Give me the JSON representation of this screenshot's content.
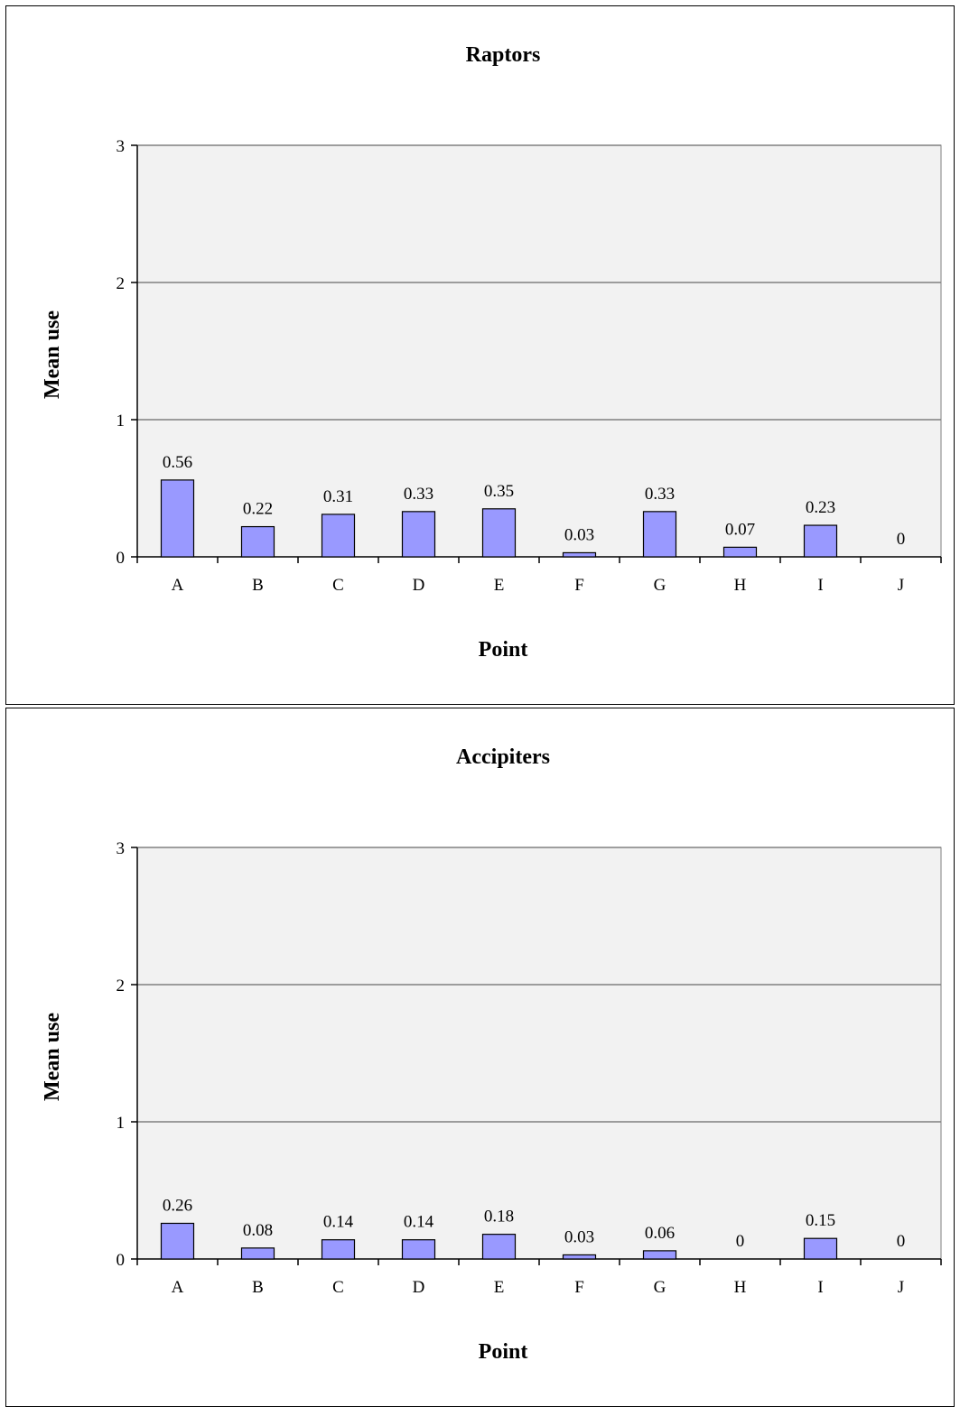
{
  "chart_data": [
    {
      "type": "bar",
      "title": "Raptors",
      "xlabel": "Point",
      "ylabel": "Mean use",
      "ylim": [
        0,
        3
      ],
      "yticks": [
        "0",
        "1",
        "2",
        "3"
      ],
      "categories": [
        "A",
        "B",
        "C",
        "D",
        "E",
        "F",
        "G",
        "H",
        "I",
        "J"
      ],
      "values": [
        0.56,
        0.22,
        0.31,
        0.33,
        0.35,
        0.03,
        0.33,
        0.07,
        0.23,
        0
      ],
      "labels": [
        "0.56",
        "0.22",
        "0.31",
        "0.33",
        "0.35",
        "0.03",
        "0.33",
        "0.07",
        "0.23",
        "0"
      ],
      "grid": true,
      "colors": {
        "bar": "#9999ff",
        "plot_bg": "#f2f2f2",
        "grid": "#808080"
      }
    },
    {
      "type": "bar",
      "title": "Accipiters",
      "xlabel": "Point",
      "ylabel": "Mean use",
      "ylim": [
        0,
        3
      ],
      "yticks": [
        "0",
        "1",
        "2",
        "3"
      ],
      "categories": [
        "A",
        "B",
        "C",
        "D",
        "E",
        "F",
        "G",
        "H",
        "I",
        "J"
      ],
      "values": [
        0.26,
        0.08,
        0.14,
        0.14,
        0.18,
        0.03,
        0.06,
        0,
        0.15,
        0
      ],
      "labels": [
        "0.26",
        "0.08",
        "0.14",
        "0.14",
        "0.18",
        "0.03",
        "0.06",
        "0",
        "0.15",
        "0"
      ],
      "grid": true,
      "colors": {
        "bar": "#9999ff",
        "plot_bg": "#f2f2f2",
        "grid": "#808080"
      }
    }
  ]
}
